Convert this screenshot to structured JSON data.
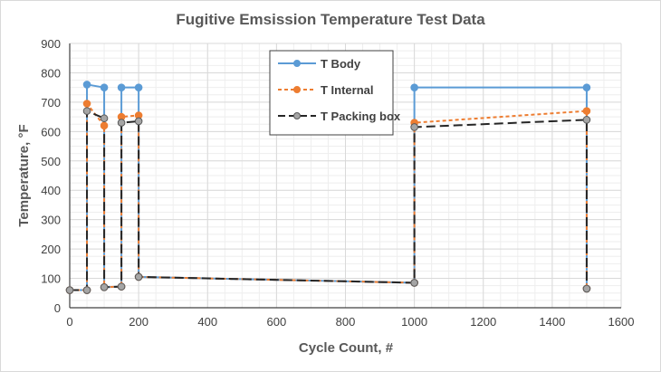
{
  "chart_data": {
    "type": "line",
    "title": "Fugitive Emsission Temperature Test Data",
    "xlabel": "Cycle Count, #",
    "ylabel": "Temperature, °F",
    "xlim": [
      0,
      1600
    ],
    "ylim": [
      0,
      900
    ],
    "xticks": [
      0,
      200,
      400,
      600,
      800,
      1000,
      1200,
      1400,
      1600
    ],
    "yticks": [
      0,
      100,
      200,
      300,
      400,
      500,
      600,
      700,
      800,
      900
    ],
    "grid": true,
    "legend_position": "top-center",
    "x": [
      0,
      50,
      50,
      100,
      100,
      150,
      150,
      200,
      200,
      1000,
      1000,
      1500,
      1500
    ],
    "series": [
      {
        "name": "T Body",
        "color": "#5B9BD5",
        "style": "solid",
        "values": [
          60,
          60,
          760,
          750,
          70,
          72,
          750,
          750,
          105,
          85,
          750,
          750,
          65
        ]
      },
      {
        "name": "T Internal",
        "color": "#ED7D31",
        "style": "dotted",
        "values": [
          60,
          60,
          695,
          620,
          70,
          72,
          650,
          655,
          105,
          85,
          630,
          670,
          65
        ]
      },
      {
        "name": "T Packing box",
        "color": "#262626",
        "marker_color": "#A5A5A5",
        "style": "dashed",
        "values": [
          60,
          60,
          670,
          645,
          70,
          72,
          630,
          635,
          105,
          85,
          615,
          640,
          65
        ]
      }
    ]
  }
}
